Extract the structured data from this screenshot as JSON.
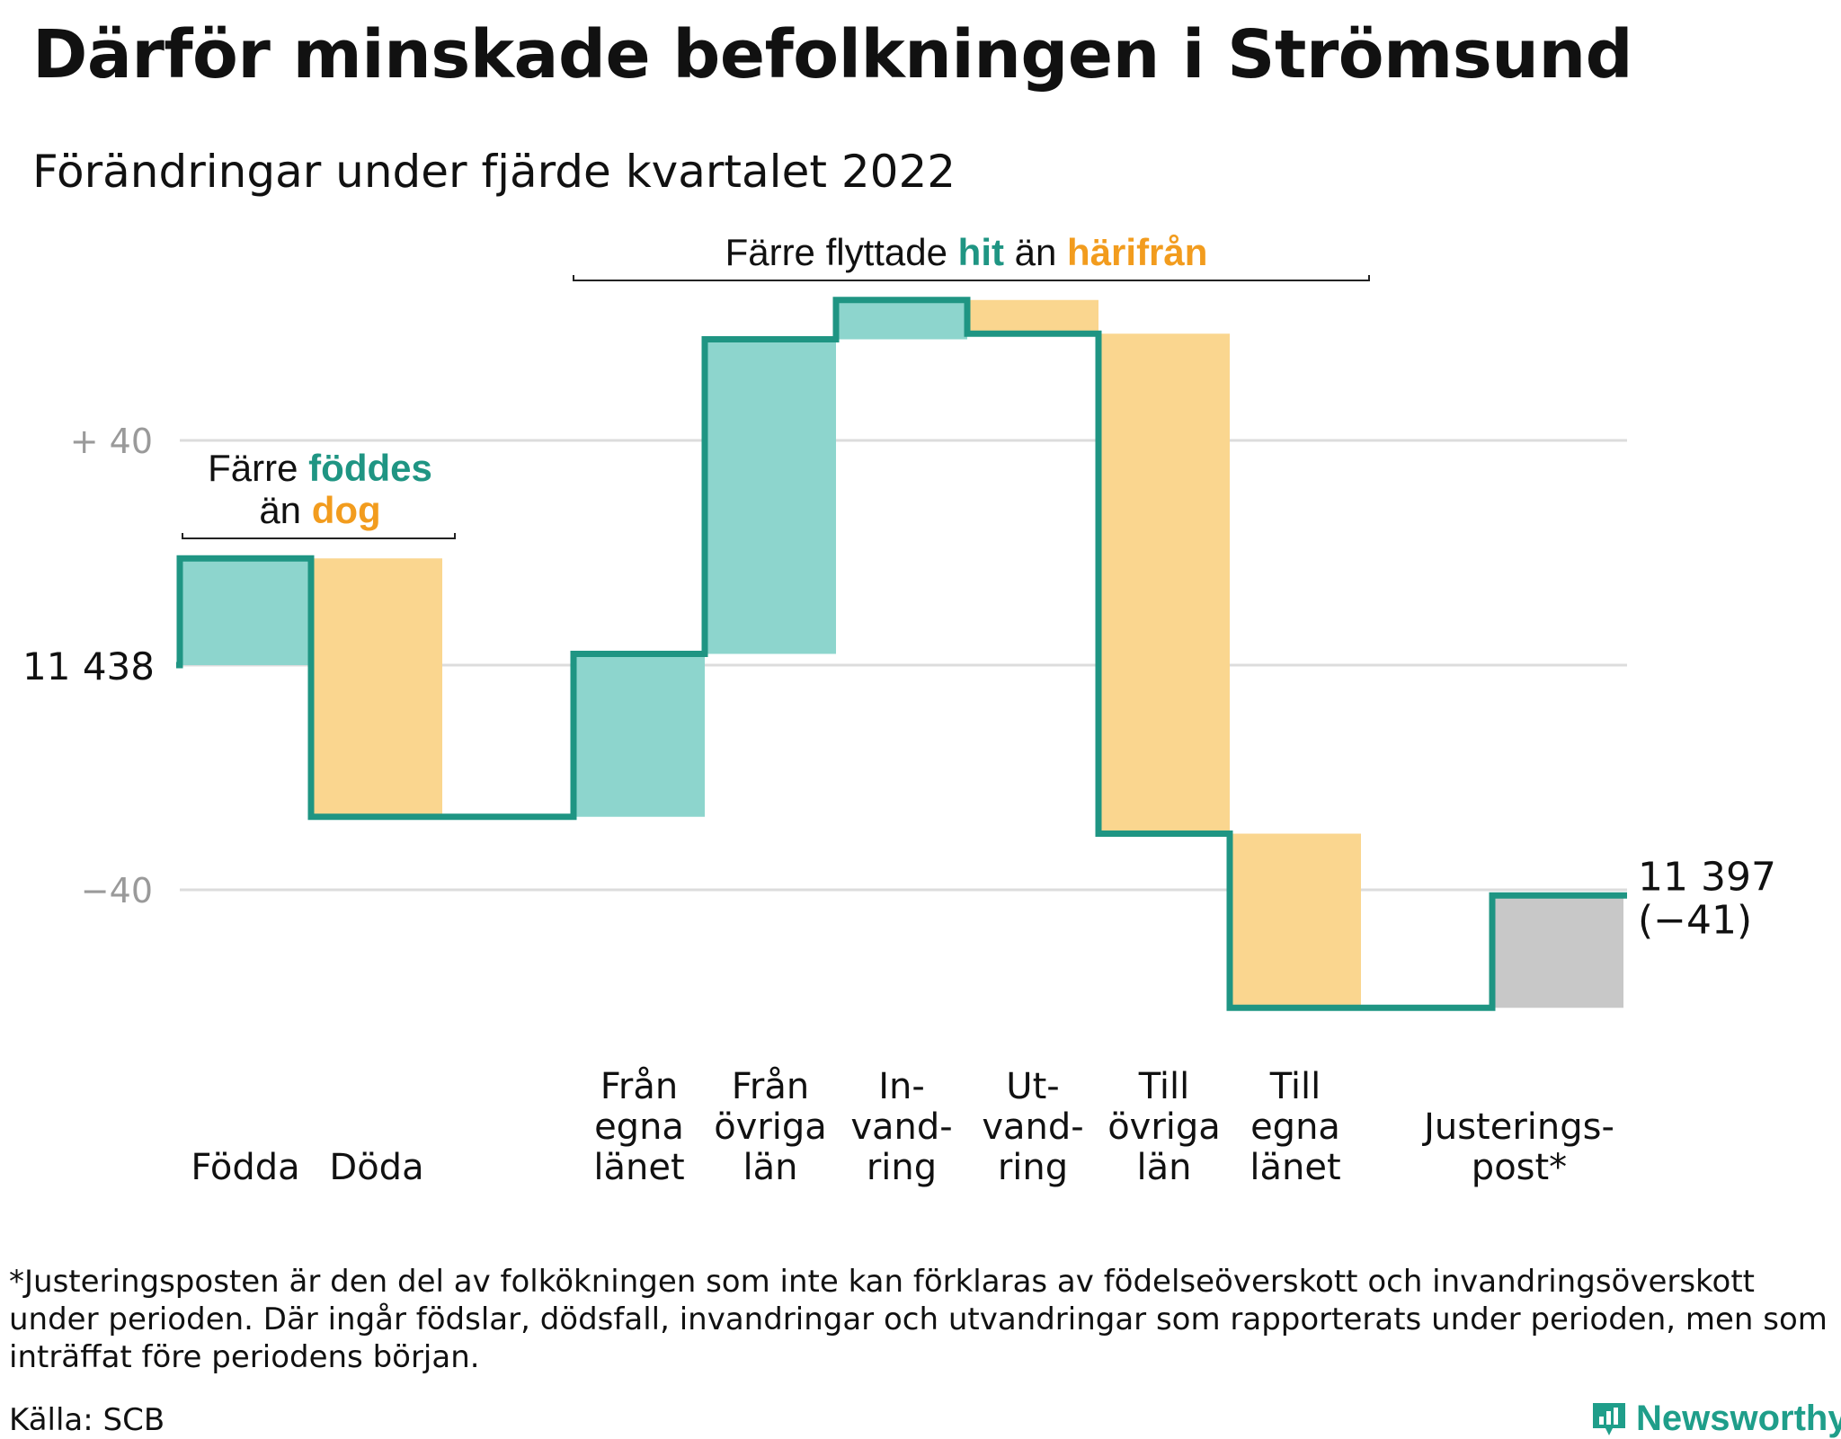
{
  "title": "Därför minskade befolkningen i Strömsund",
  "subtitle": "Förändringar under fjärde kvartalet 2022",
  "colors": {
    "teal": "#1f9583",
    "teal_fill": "#8dd5cd",
    "orange_fill": "#fad68f",
    "orange_text": "#f29c1e",
    "gray_fill": "#c8c8c8",
    "grid": "#dcdcdc"
  },
  "annotations": {
    "births": {
      "line1_a": "Färre ",
      "line1_b": "föddes",
      "line2_a": "än ",
      "line2_b": "dog"
    },
    "migration": {
      "part_a": "Färre flyttade ",
      "part_b": "hit",
      "part_c": " än ",
      "part_d": "härifrån"
    }
  },
  "chart_data": {
    "type": "waterfall",
    "start_value": 11438,
    "start_label": "11 438",
    "end_label_line1": "11 397",
    "end_label_line2": "(−41)",
    "y_ticks": [
      {
        "value": 40,
        "label": "+ 40"
      },
      {
        "value": -40,
        "label": "−40"
      }
    ],
    "grid": true,
    "steps": [
      {
        "label_lines": [
          "Födda"
        ],
        "delta": 19,
        "kind": "in"
      },
      {
        "label_lines": [
          "Döda"
        ],
        "delta": -46,
        "kind": "out"
      },
      {
        "label_lines": [],
        "delta": 0,
        "kind": "spacer"
      },
      {
        "label_lines": [
          "Från",
          "egna",
          "länet"
        ],
        "delta": 29,
        "kind": "in"
      },
      {
        "label_lines": [
          "Från",
          "övriga",
          "län"
        ],
        "delta": 56,
        "kind": "in"
      },
      {
        "label_lines": [
          "In-",
          "vand-",
          "ring"
        ],
        "delta": 7,
        "kind": "in"
      },
      {
        "label_lines": [
          "Ut-",
          "vand-",
          "ring"
        ],
        "delta": -6,
        "kind": "out"
      },
      {
        "label_lines": [
          "Till",
          "övriga",
          "län"
        ],
        "delta": -89,
        "kind": "out"
      },
      {
        "label_lines": [
          "Till",
          "egna",
          "länet"
        ],
        "delta": -31,
        "kind": "out"
      },
      {
        "label_lines": [],
        "delta": 0,
        "kind": "spacer"
      },
      {
        "label_lines": [
          "Justerings-",
          "post*"
        ],
        "delta": 20,
        "kind": "adjust"
      }
    ]
  },
  "footnote": "*Justeringsposten är den del av folkökningen som inte kan förklaras av födelseöverskott och invandringsöverskott under perioden. Där ingår födslar, dödsfall, invandringar och utvandringar som rapporterats under perioden, men som inträffat före periodens början.",
  "source": "Källa: SCB",
  "brand": "Newsworthy"
}
